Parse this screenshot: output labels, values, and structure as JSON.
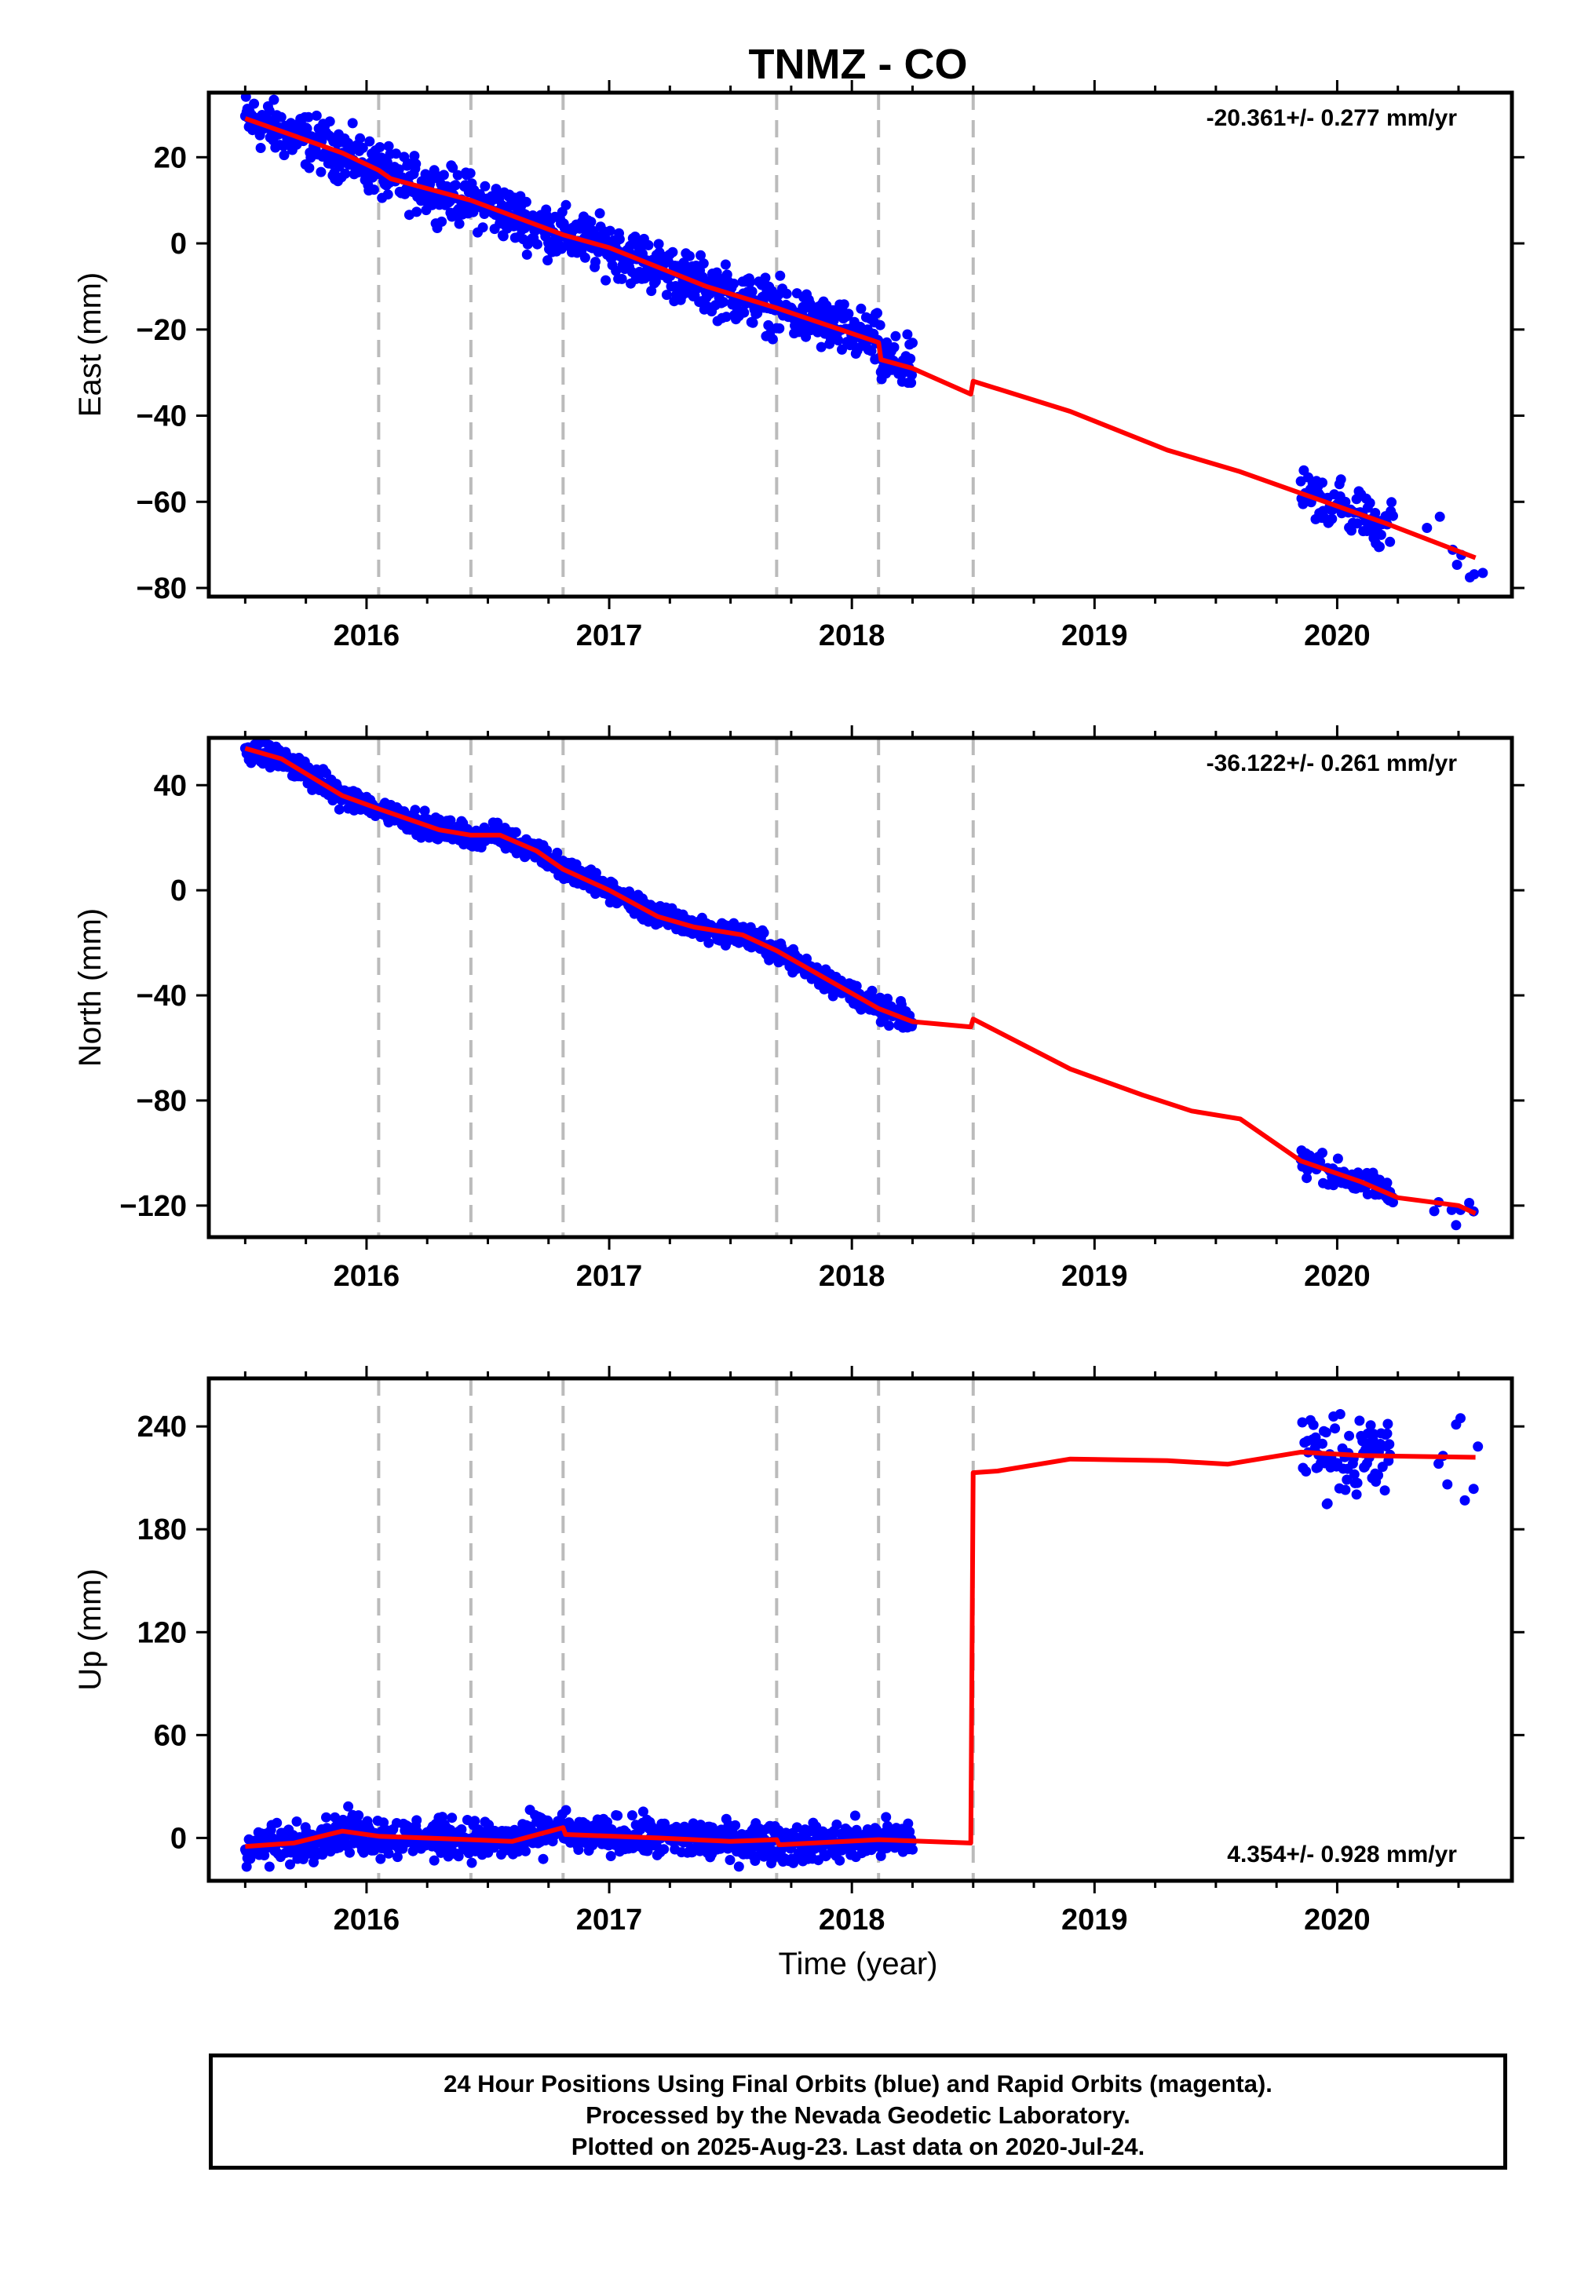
{
  "chart_data": {
    "title": "TNMZ - CO",
    "type": "scatter",
    "xlabel": "Time (year)",
    "xlim": [
      2015.35,
      2020.72
    ],
    "x_ticks": [
      2016,
      2017,
      2018,
      2019,
      2020
    ],
    "x_tick_labels": [
      "2016",
      "2017",
      "2018",
      "2019",
      "2020"
    ],
    "event_lines": [
      2016.05,
      2016.43,
      2016.81,
      2017.69,
      2018.11,
      2018.5
    ],
    "series_colors": {
      "daily_positions": "#0000ff",
      "model_fit": "#ff0000",
      "event_lines": "#bbbbbb"
    },
    "panels": [
      {
        "ylabel": "East (mm)",
        "ylim": [
          -82,
          35
        ],
        "y_ticks": [
          20,
          0,
          -20,
          -40,
          -60,
          -80
        ],
        "y_tick_labels": [
          "20",
          "0",
          "−20",
          "−40",
          "−60",
          "−80"
        ],
        "rate_label": "-20.361+/- 0.277 mm/yr",
        "rate_position": "top-right",
        "model_fit": [
          [
            2015.5,
            29
          ],
          [
            2015.9,
            21
          ],
          [
            2016.05,
            17
          ],
          [
            2016.1,
            15
          ],
          [
            2016.43,
            10
          ],
          [
            2016.81,
            2
          ],
          [
            2017.0,
            -1
          ],
          [
            2017.4,
            -10
          ],
          [
            2017.69,
            -15
          ],
          [
            2018.11,
            -23
          ],
          [
            2018.12,
            -27
          ],
          [
            2018.25,
            -29
          ],
          [
            2018.49,
            -35
          ],
          [
            2018.5,
            -32
          ],
          [
            2018.9,
            -39
          ],
          [
            2019.3,
            -48
          ],
          [
            2019.6,
            -53
          ],
          [
            2019.9,
            -59
          ],
          [
            2020.2,
            -65
          ],
          [
            2020.57,
            -73
          ]
        ],
        "data_segments": [
          {
            "start": 2015.5,
            "end": 2018.25,
            "points": [
              [
                2015.5,
                29
              ],
              [
                2015.9,
                21
              ],
              [
                2016.05,
                17
              ],
              [
                2016.1,
                15
              ],
              [
                2016.43,
                10
              ],
              [
                2016.81,
                2
              ],
              [
                2017.0,
                -1
              ],
              [
                2017.4,
                -10
              ],
              [
                2017.69,
                -15
              ],
              [
                2018.11,
                -23
              ],
              [
                2018.12,
                -27
              ],
              [
                2018.25,
                -29
              ]
            ],
            "scatter": 3.0
          },
          {
            "start": 2019.85,
            "end": 2020.23,
            "points": [
              [
                2019.85,
                -58
              ],
              [
                2020.23,
                -65
              ]
            ],
            "scatter": 3.0
          },
          {
            "start": 2020.37,
            "end": 2020.6,
            "points": [
              [
                2020.37,
                -68
              ],
              [
                2020.6,
                -76
              ]
            ],
            "scatter": 3.5
          }
        ]
      },
      {
        "ylabel": "North (mm)",
        "ylim": [
          -132,
          58
        ],
        "y_ticks": [
          40,
          0,
          -40,
          -80,
          -120
        ],
        "y_tick_labels": [
          "40",
          "0",
          "−40",
          "−80",
          "−120"
        ],
        "rate_label": "-36.122+/- 0.261 mm/yr",
        "rate_position": "top-right",
        "model_fit": [
          [
            2015.5,
            54
          ],
          [
            2015.65,
            50
          ],
          [
            2015.9,
            36
          ],
          [
            2016.05,
            31
          ],
          [
            2016.3,
            23
          ],
          [
            2016.43,
            21
          ],
          [
            2016.55,
            21
          ],
          [
            2016.7,
            15
          ],
          [
            2016.81,
            8
          ],
          [
            2017.0,
            0
          ],
          [
            2017.2,
            -10
          ],
          [
            2017.35,
            -14
          ],
          [
            2017.55,
            -17
          ],
          [
            2017.69,
            -23
          ],
          [
            2017.9,
            -34
          ],
          [
            2018.11,
            -45
          ],
          [
            2018.25,
            -50
          ],
          [
            2018.49,
            -52
          ],
          [
            2018.5,
            -49
          ],
          [
            2018.9,
            -68
          ],
          [
            2019.2,
            -78
          ],
          [
            2019.4,
            -84
          ],
          [
            2019.6,
            -87
          ],
          [
            2019.85,
            -103
          ],
          [
            2020.1,
            -111
          ],
          [
            2020.25,
            -117
          ],
          [
            2020.5,
            -120
          ],
          [
            2020.57,
            -123
          ]
        ],
        "data_segments": [
          {
            "start": 2015.5,
            "end": 2018.25,
            "points": [
              [
                2015.5,
                54
              ],
              [
                2015.65,
                50
              ],
              [
                2015.9,
                36
              ],
              [
                2016.05,
                31
              ],
              [
                2016.3,
                23
              ],
              [
                2016.43,
                21
              ],
              [
                2016.55,
                21
              ],
              [
                2016.7,
                15
              ],
              [
                2016.81,
                8
              ],
              [
                2017.0,
                0
              ],
              [
                2017.2,
                -10
              ],
              [
                2017.35,
                -14
              ],
              [
                2017.55,
                -17
              ],
              [
                2017.69,
                -23
              ],
              [
                2017.9,
                -34
              ],
              [
                2018.11,
                -45
              ],
              [
                2018.25,
                -50
              ]
            ],
            "scatter": 2.2
          },
          {
            "start": 2019.85,
            "end": 2020.23,
            "points": [
              [
                2019.85,
                -103
              ],
              [
                2020.1,
                -111
              ],
              [
                2020.23,
                -116
              ]
            ],
            "scatter": 2.5
          },
          {
            "start": 2020.4,
            "end": 2020.58,
            "points": [
              [
                2020.4,
                -120
              ],
              [
                2020.58,
                -122
              ]
            ],
            "scatter": 3.0
          }
        ]
      },
      {
        "ylabel": "Up (mm)",
        "ylim": [
          -25,
          268
        ],
        "y_ticks": [
          240,
          180,
          120,
          60,
          0
        ],
        "y_tick_labels": [
          "240",
          "180",
          "120",
          "60",
          "0"
        ],
        "rate_label": "4.354+/- 0.928 mm/yr",
        "rate_position": "bottom-right",
        "model_fit": [
          [
            2015.5,
            -5
          ],
          [
            2015.7,
            -3
          ],
          [
            2015.9,
            4
          ],
          [
            2016.05,
            1
          ],
          [
            2016.43,
            -1
          ],
          [
            2016.6,
            -2
          ],
          [
            2016.81,
            6
          ],
          [
            2016.82,
            2
          ],
          [
            2017.2,
            0
          ],
          [
            2017.5,
            -2
          ],
          [
            2017.69,
            -1
          ],
          [
            2017.7,
            -4
          ],
          [
            2018.11,
            -1
          ],
          [
            2018.49,
            -3
          ],
          [
            2018.5,
            213
          ],
          [
            2018.6,
            214
          ],
          [
            2018.9,
            221
          ],
          [
            2019.3,
            220
          ],
          [
            2019.55,
            218
          ],
          [
            2019.85,
            225
          ],
          [
            2020.1,
            223
          ],
          [
            2020.57,
            222
          ]
        ],
        "data_segments": [
          {
            "start": 2015.5,
            "end": 2018.25,
            "points": [
              [
                2015.5,
                -5
              ],
              [
                2015.7,
                -3
              ],
              [
                2015.9,
                4
              ],
              [
                2016.05,
                1
              ],
              [
                2016.43,
                -1
              ],
              [
                2016.6,
                -2
              ],
              [
                2016.81,
                6
              ],
              [
                2016.82,
                2
              ],
              [
                2017.2,
                0
              ],
              [
                2017.5,
                -2
              ],
              [
                2017.69,
                -1
              ],
              [
                2017.7,
                -4
              ],
              [
                2018.11,
                -1
              ],
              [
                2018.25,
                -1
              ]
            ],
            "scatter": 5.5
          },
          {
            "start": 2019.85,
            "end": 2020.23,
            "points": [
              [
                2019.85,
                225
              ],
              [
                2020.23,
                222
              ]
            ],
            "scatter": 12
          },
          {
            "start": 2020.4,
            "end": 2020.58,
            "points": [
              [
                2020.4,
                223
              ],
              [
                2020.58,
                222
              ]
            ],
            "scatter": 14
          }
        ]
      }
    ]
  },
  "footer": {
    "line1": "24 Hour Positions Using Final Orbits (blue) and Rapid Orbits (magenta).",
    "line2": "Processed by the Nevada Geodetic Laboratory.",
    "line3": "Plotted on 2025-Aug-23. Last data on 2020-Jul-24."
  }
}
